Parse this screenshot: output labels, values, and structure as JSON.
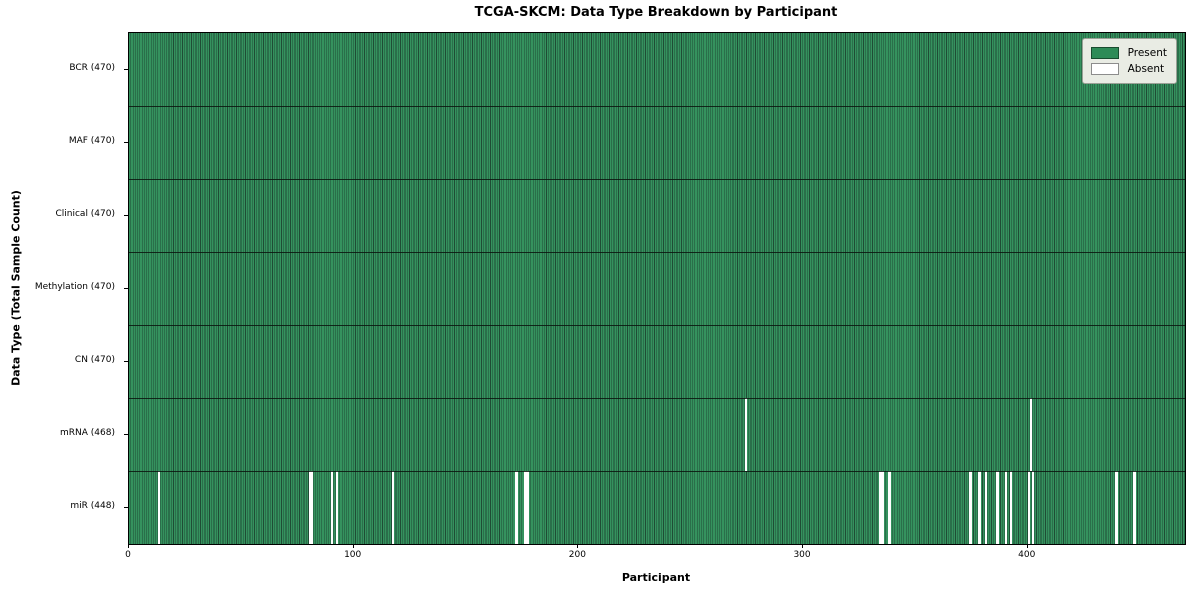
{
  "title": "TCGA-SKCM: Data Type Breakdown by Participant",
  "legend": {
    "present_label": "Present",
    "absent_label": "Absent"
  },
  "colors": {
    "present": "#2e8b57",
    "present_edge": "#1f4c35",
    "absent": "#ffffff",
    "legend_bg": "#e9ece4",
    "spine": "#000000"
  },
  "chart_data": {
    "type": "heatmap",
    "title": "TCGA-SKCM: Data Type Breakdown by Participant",
    "xlabel": "Participant",
    "ylabel": "Data Type (Total Sample Count)",
    "legend_labels": [
      "Present",
      "Absent"
    ],
    "legend_position": "upper right",
    "n_participants": 470,
    "x_ticks": [
      0,
      100,
      200,
      300,
      400
    ],
    "xlim": [
      0,
      470
    ],
    "grid": false,
    "rows": [
      {
        "label": "BCR (470)",
        "total": 470,
        "absent_participants": []
      },
      {
        "label": "MAF (470)",
        "total": 470,
        "absent_participants": []
      },
      {
        "label": "Clinical (470)",
        "total": 470,
        "absent_participants": []
      },
      {
        "label": "Methylation (470)",
        "total": 470,
        "absent_participants": []
      },
      {
        "label": "CN (470)",
        "total": 470,
        "absent_participants": []
      },
      {
        "label": "mRNA (468)",
        "total": 468,
        "absent_participants": [
          274,
          401
        ]
      },
      {
        "label": "miR (448)",
        "total": 448,
        "absent_participants": [
          13,
          80,
          81,
          90,
          92,
          117,
          172,
          176,
          177,
          334,
          335,
          338,
          374,
          378,
          381,
          386,
          390,
          392,
          400,
          402,
          439,
          447
        ]
      }
    ]
  }
}
